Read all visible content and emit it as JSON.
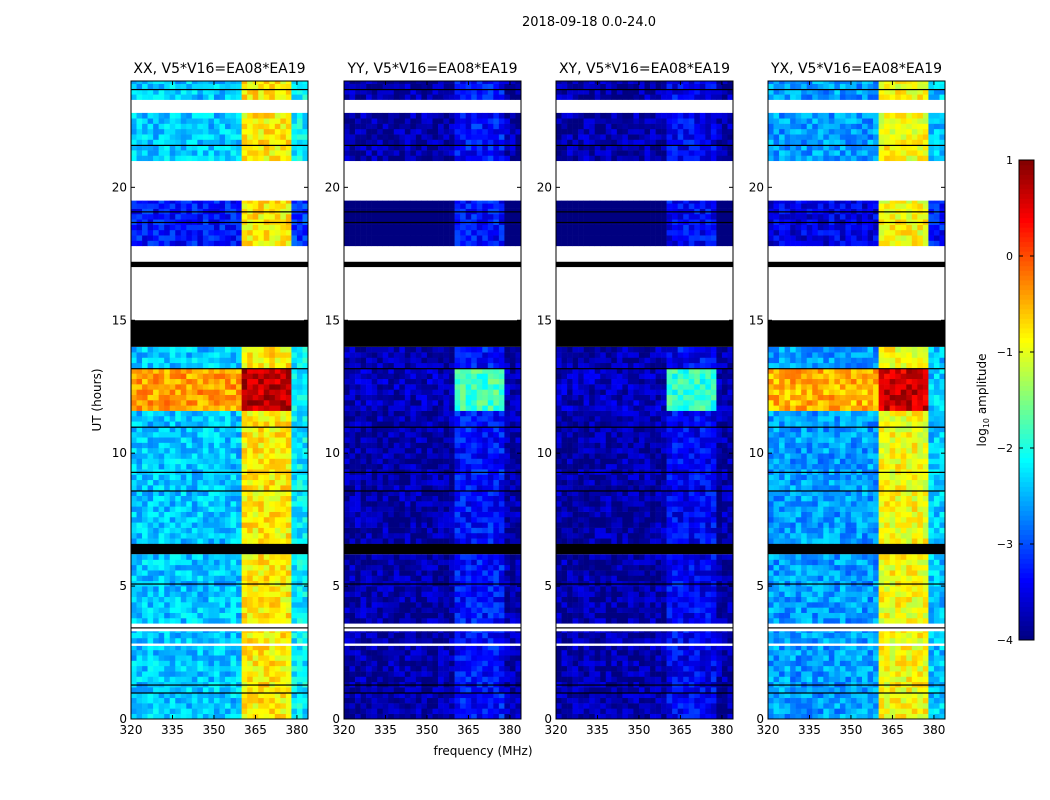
{
  "chart_data": {
    "type": "heatmap",
    "title": "2018-09-18 0.0-24.0",
    "xlabel": "frequency (MHz)",
    "ylabel": "UT (hours)",
    "xlim": [
      320,
      384
    ],
    "ylim": [
      0,
      24
    ],
    "xticks": [
      320,
      335,
      350,
      365,
      380
    ],
    "yticks": [
      0,
      5,
      10,
      15,
      20
    ],
    "colorbar": {
      "label_main": "log",
      "label_sub": "10",
      "label_tail": " amplitude",
      "range": [
        -4,
        1
      ],
      "ticks": [
        1,
        0,
        -1,
        -2,
        -3,
        -4
      ],
      "tick_labels": [
        "1",
        "0",
        "−1",
        "−2",
        "−3",
        "−4"
      ],
      "colormap": "jet"
    },
    "time_segments": [
      {
        "start": 0.0,
        "end": 2.75,
        "kind": "data"
      },
      {
        "start": 2.75,
        "end": 2.85,
        "kind": "flagged"
      },
      {
        "start": 2.85,
        "end": 3.3,
        "kind": "data"
      },
      {
        "start": 3.3,
        "end": 3.6,
        "kind": "flagged"
      },
      {
        "start": 3.6,
        "end": 6.2,
        "kind": "data"
      },
      {
        "start": 6.2,
        "end": 6.6,
        "kind": "zero"
      },
      {
        "start": 6.6,
        "end": 14.0,
        "kind": "data"
      },
      {
        "start": 14.0,
        "end": 15.0,
        "kind": "zero"
      },
      {
        "start": 15.0,
        "end": 17.0,
        "kind": "flagged"
      },
      {
        "start": 17.0,
        "end": 17.2,
        "kind": "zero"
      },
      {
        "start": 17.2,
        "end": 17.8,
        "kind": "flagged"
      },
      {
        "start": 17.8,
        "end": 19.5,
        "kind": "data"
      },
      {
        "start": 19.5,
        "end": 19.8,
        "kind": "flagged"
      },
      {
        "start": 19.8,
        "end": 21.0,
        "kind": "flagged"
      },
      {
        "start": 21.0,
        "end": 22.8,
        "kind": "data"
      },
      {
        "start": 22.8,
        "end": 23.3,
        "kind": "flagged"
      },
      {
        "start": 23.3,
        "end": 24.0,
        "kind": "data"
      }
    ],
    "bright_window": [
      11.5,
      13.0
    ],
    "panels": [
      {
        "title": "XX, V5*V16=EA08*EA19",
        "background": -2.4,
        "band_level": -0.8,
        "edge_level": -2.2,
        "bright_bg": -0.4,
        "bright_band": 0.7
      },
      {
        "title": "YY, V5*V16=EA08*EA19",
        "background": -3.8,
        "band_level": -3.3,
        "edge_level": -3.8,
        "bright_bg": -3.7,
        "bright_band": -1.8
      },
      {
        "title": "XY, V5*V16=EA08*EA19",
        "background": -3.8,
        "band_level": -3.4,
        "edge_level": -3.8,
        "bright_bg": -3.7,
        "bright_band": -1.9
      },
      {
        "title": "YX, V5*V16=EA08*EA19",
        "background": -2.6,
        "band_level": -0.9,
        "edge_level": -2.4,
        "bright_bg": -0.5,
        "bright_band": 0.6
      }
    ],
    "bands_mhz": [
      [
        360,
        365
      ],
      [
        365,
        368.5
      ],
      [
        368.5,
        372
      ],
      [
        372,
        375
      ],
      [
        375,
        379
      ]
    ]
  }
}
